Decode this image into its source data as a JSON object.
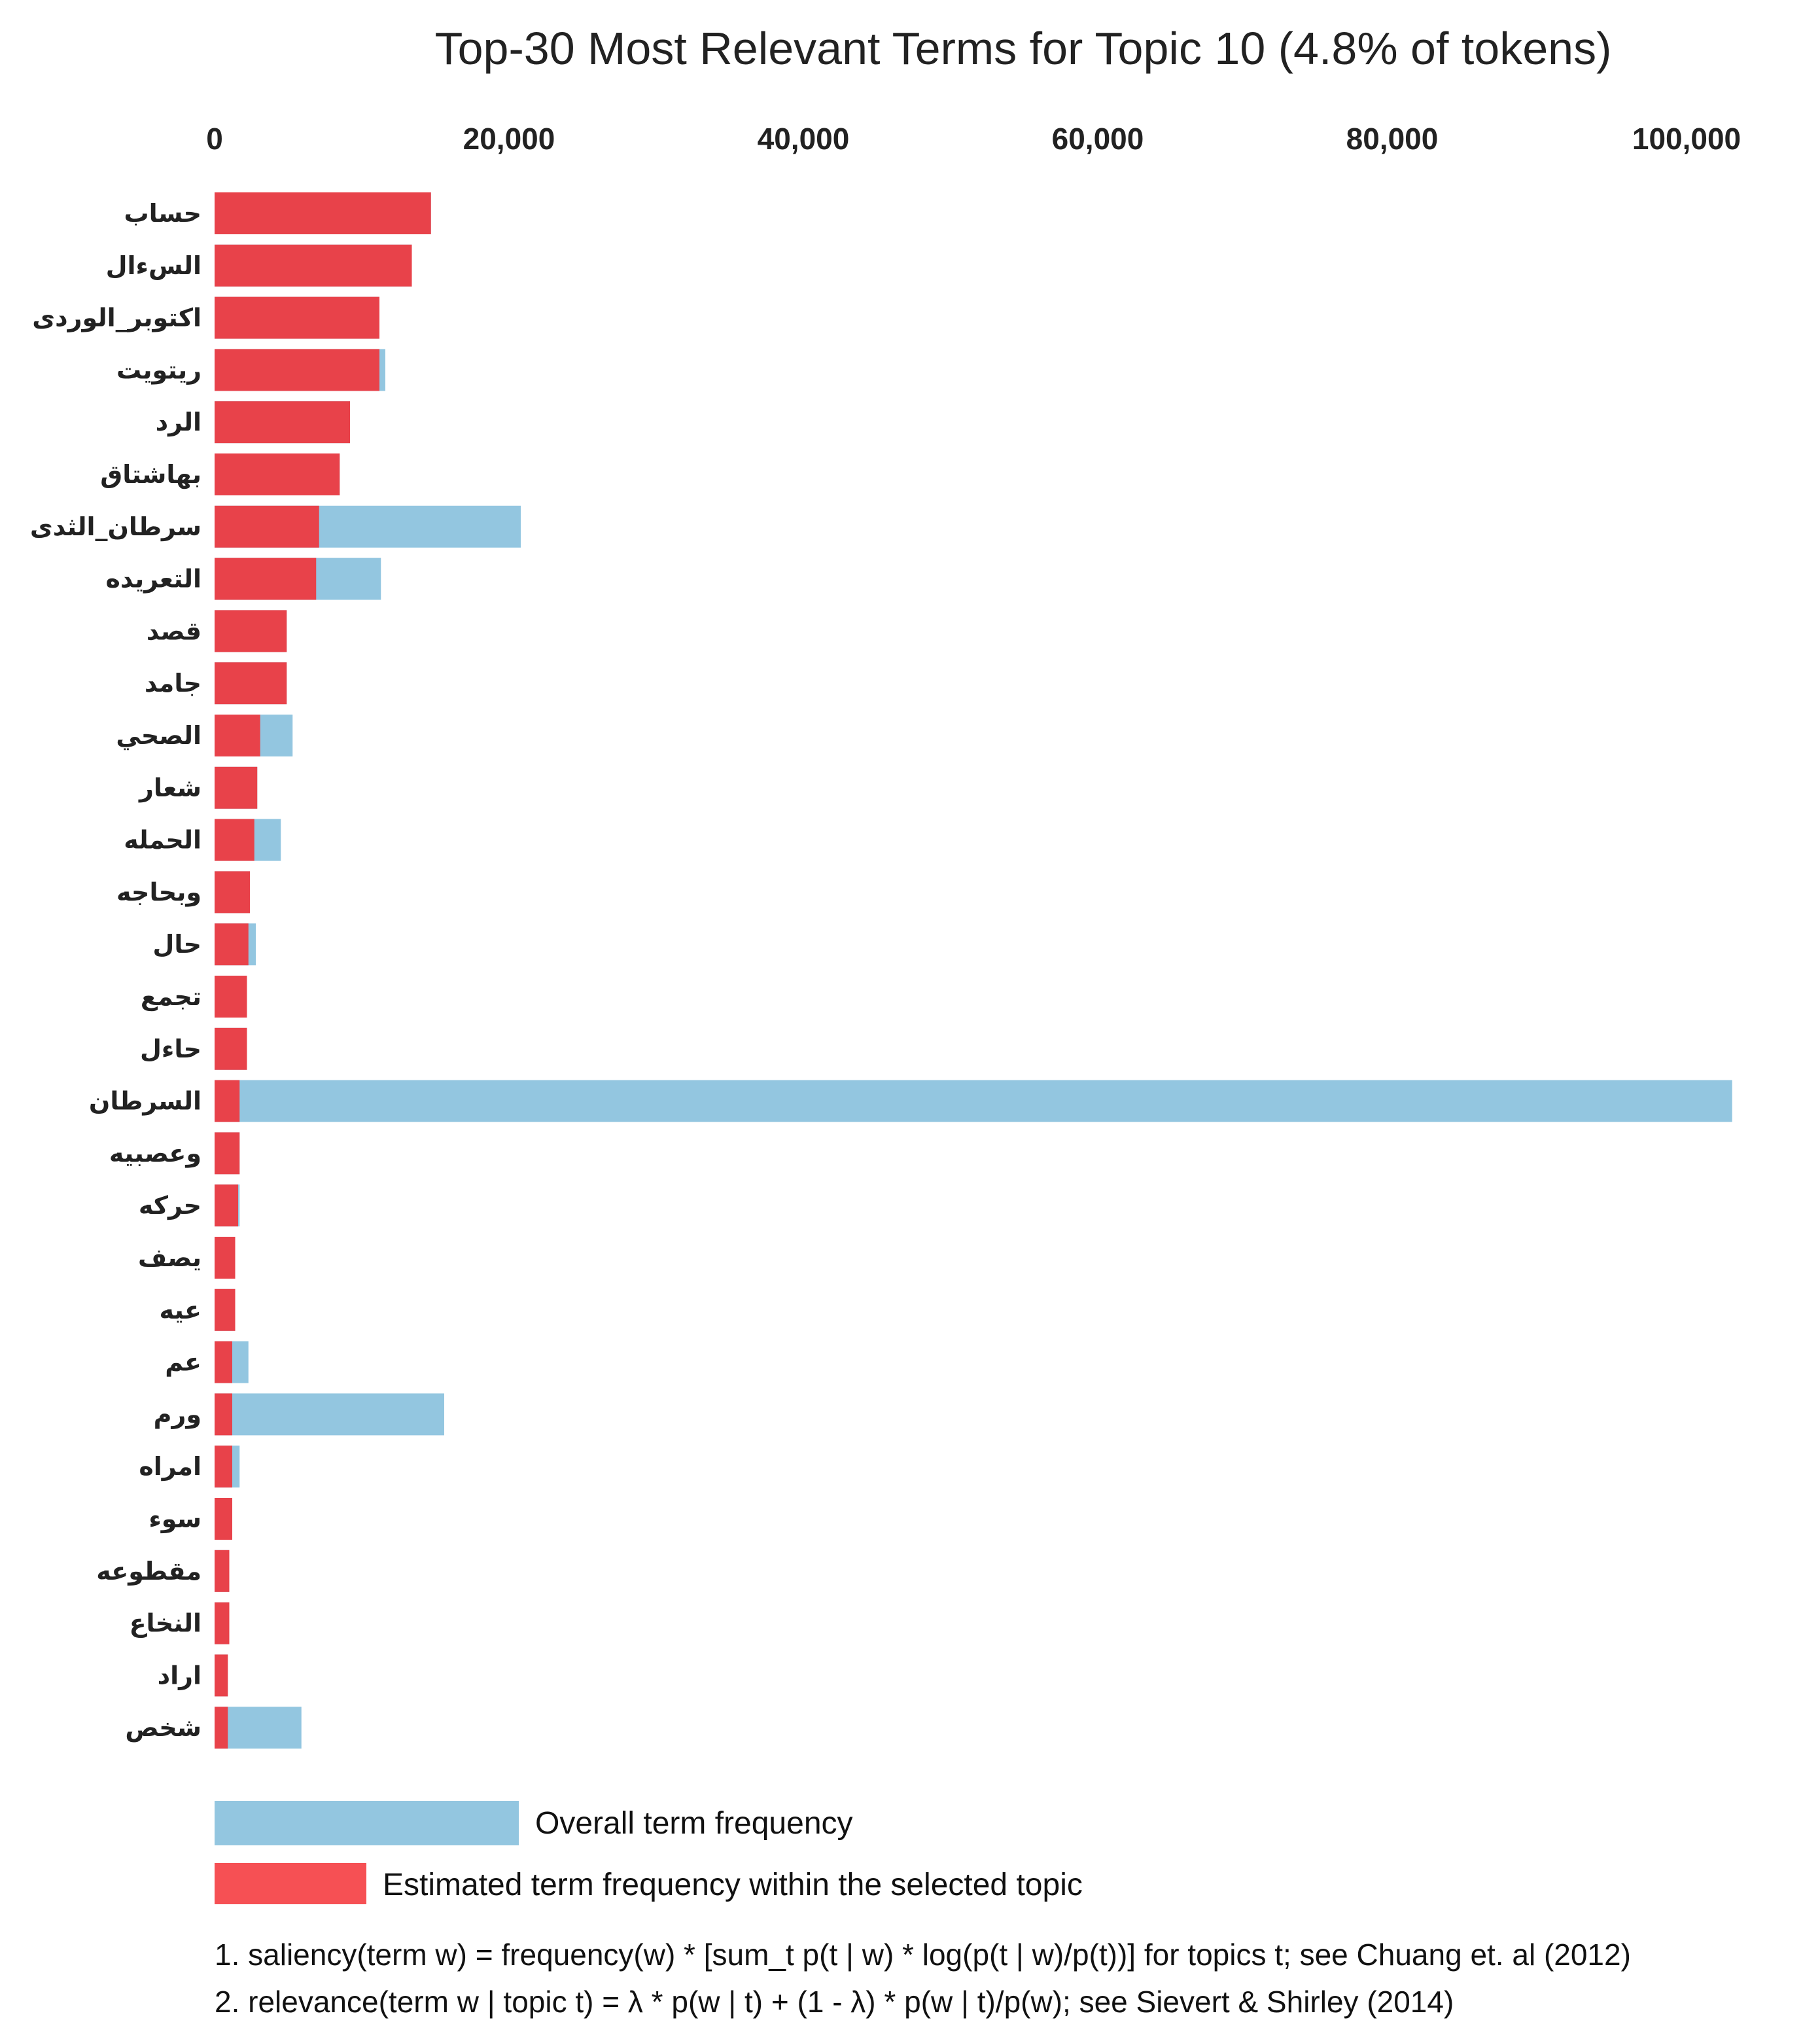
{
  "chart_data": {
    "type": "bar",
    "orientation": "horizontal",
    "title": "Top-30 Most Relevant Terms for Topic 10 (4.8% of tokens)",
    "x_axis": {
      "position": "top",
      "range": [
        0,
        100000
      ],
      "ticks": [
        0,
        20000,
        40000,
        60000,
        80000,
        100000
      ],
      "tick_labels": [
        "0",
        "20,000",
        "40,000",
        "60,000",
        "80,000",
        "100,000"
      ]
    },
    "categories": [
      "حساب",
      "السءال",
      "اكتوبر_الوردى",
      "ريتويت",
      "الرد",
      "بهاشتاق",
      "سرطان_الثدى",
      "التعريده",
      "قصد",
      "جامد",
      "الصحي",
      "شعار",
      "الحمله",
      "وبحاجه",
      "حال",
      "تجمع",
      "حاءل",
      "السرطان",
      "وعصبيه",
      "حركه",
      "يصف",
      "عيه",
      "عم",
      "ورم",
      "امراه",
      "سوء",
      "مقطوعه",
      "النخاع",
      "اراد",
      "شخص"
    ],
    "series": [
      {
        "name": "Overall term frequency",
        "color": "#93c6e0",
        "values": [
          14700,
          13400,
          11200,
          11600,
          9200,
          8500,
          20800,
          11300,
          4900,
          4900,
          5300,
          2900,
          4500,
          2400,
          2800,
          2200,
          2200,
          103100,
          1700,
          1700,
          1400,
          1400,
          2300,
          15600,
          1700,
          1200,
          1000,
          1000,
          900,
          5900
        ]
      },
      {
        "name": "Estimated term frequency within the selected topic",
        "color": "#e8424a",
        "values": [
          14700,
          13400,
          11200,
          11200,
          9200,
          8500,
          7100,
          6900,
          4900,
          4900,
          3100,
          2900,
          2700,
          2400,
          2300,
          2200,
          2200,
          1700,
          1700,
          1600,
          1400,
          1400,
          1200,
          1200,
          1200,
          1200,
          1000,
          1000,
          900,
          900
        ]
      }
    ],
    "legend": {
      "placement": "bottom-left",
      "items": [
        "Overall term frequency",
        "Estimated term frequency within the selected topic"
      ]
    }
  },
  "footnotes": [
    "1. saliency(term w) = frequency(w) * [sum_t p(t | w) * log(p(t | w)/p(t))] for topics t; see Chuang et. al (2012)",
    "2. relevance(term w | topic t) = λ * p(w | t) + (1 - λ) * p(w | t)/p(w); see Sievert & Shirley (2014)"
  ]
}
